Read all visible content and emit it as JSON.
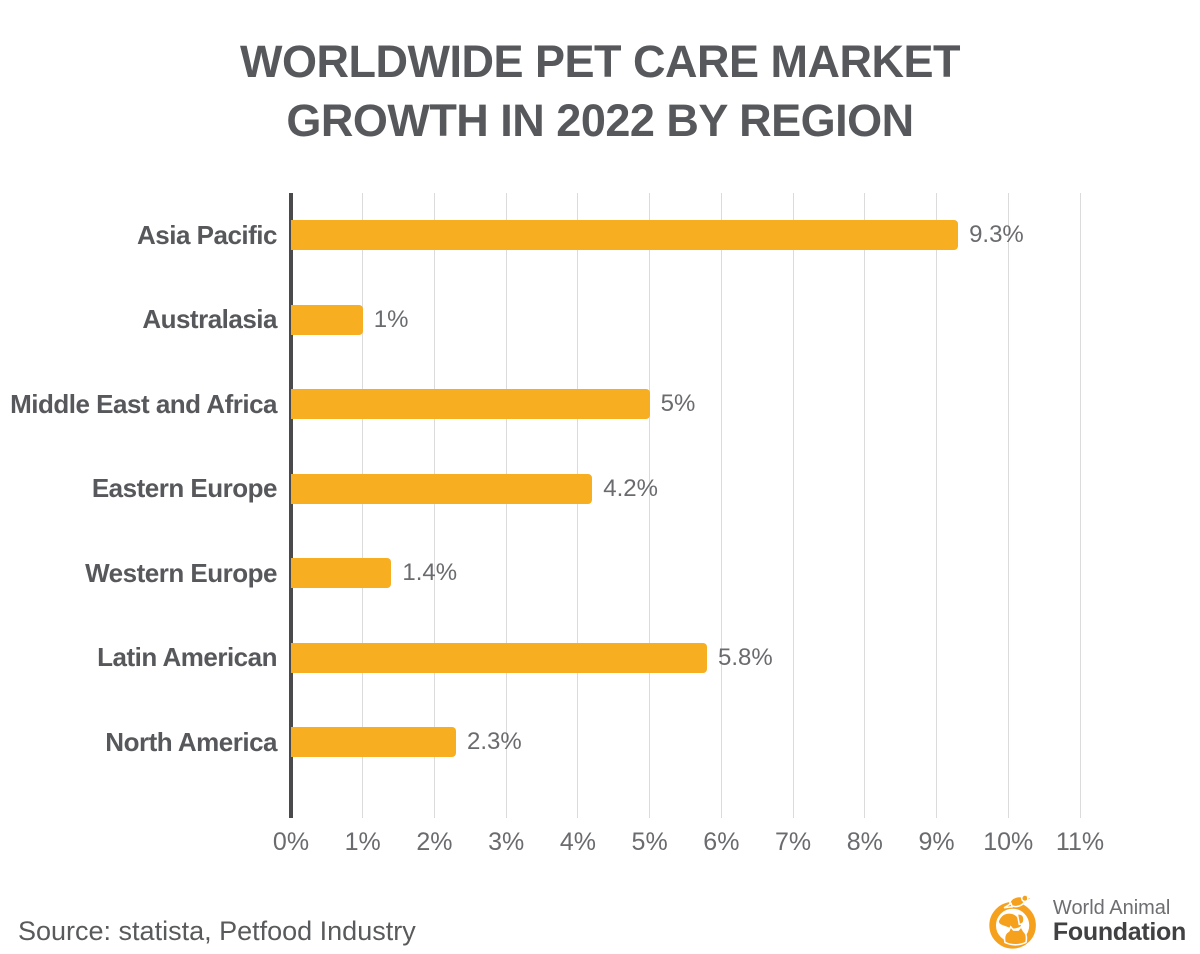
{
  "title": {
    "line1": "WORLDWIDE PET CARE MARKET",
    "line2": "GROWTH IN 2022 BY REGION"
  },
  "chart_data": {
    "type": "bar",
    "orientation": "horizontal",
    "title": "WORLDWIDE PET CARE MARKET GROWTH IN 2022 BY REGION",
    "categories": [
      "Asia Pacific",
      "Australasia",
      "Middle East and Africa",
      "Eastern Europe",
      "Western Europe",
      "Latin American",
      "North America"
    ],
    "values": [
      9.3,
      1,
      5,
      4.2,
      1.4,
      5.8,
      2.3
    ],
    "value_labels": [
      "9.3%",
      "1%",
      "5%",
      "4.2%",
      "1.4%",
      "5.8%",
      "2.3%"
    ],
    "x_ticks": [
      "0%",
      "1%",
      "2%",
      "3%",
      "4%",
      "5%",
      "6%",
      "7%",
      "8%",
      "9%",
      "10%",
      "11%"
    ],
    "xlim": [
      0,
      11
    ],
    "grid": true,
    "legend": false,
    "bar_color": "#F7AE20",
    "gridline_color": "#DBDBDB",
    "axis_line_color": "#4A4A4C",
    "label_color": "#57585B",
    "value_color": "#6A6B6E"
  },
  "footer": {
    "source": "Source: statista, Petfood Industry",
    "logo": {
      "line1": "World Animal",
      "line2": "Foundation",
      "icon": "world-animal-foundation-icon",
      "icon_color": "#F5A11E"
    }
  }
}
